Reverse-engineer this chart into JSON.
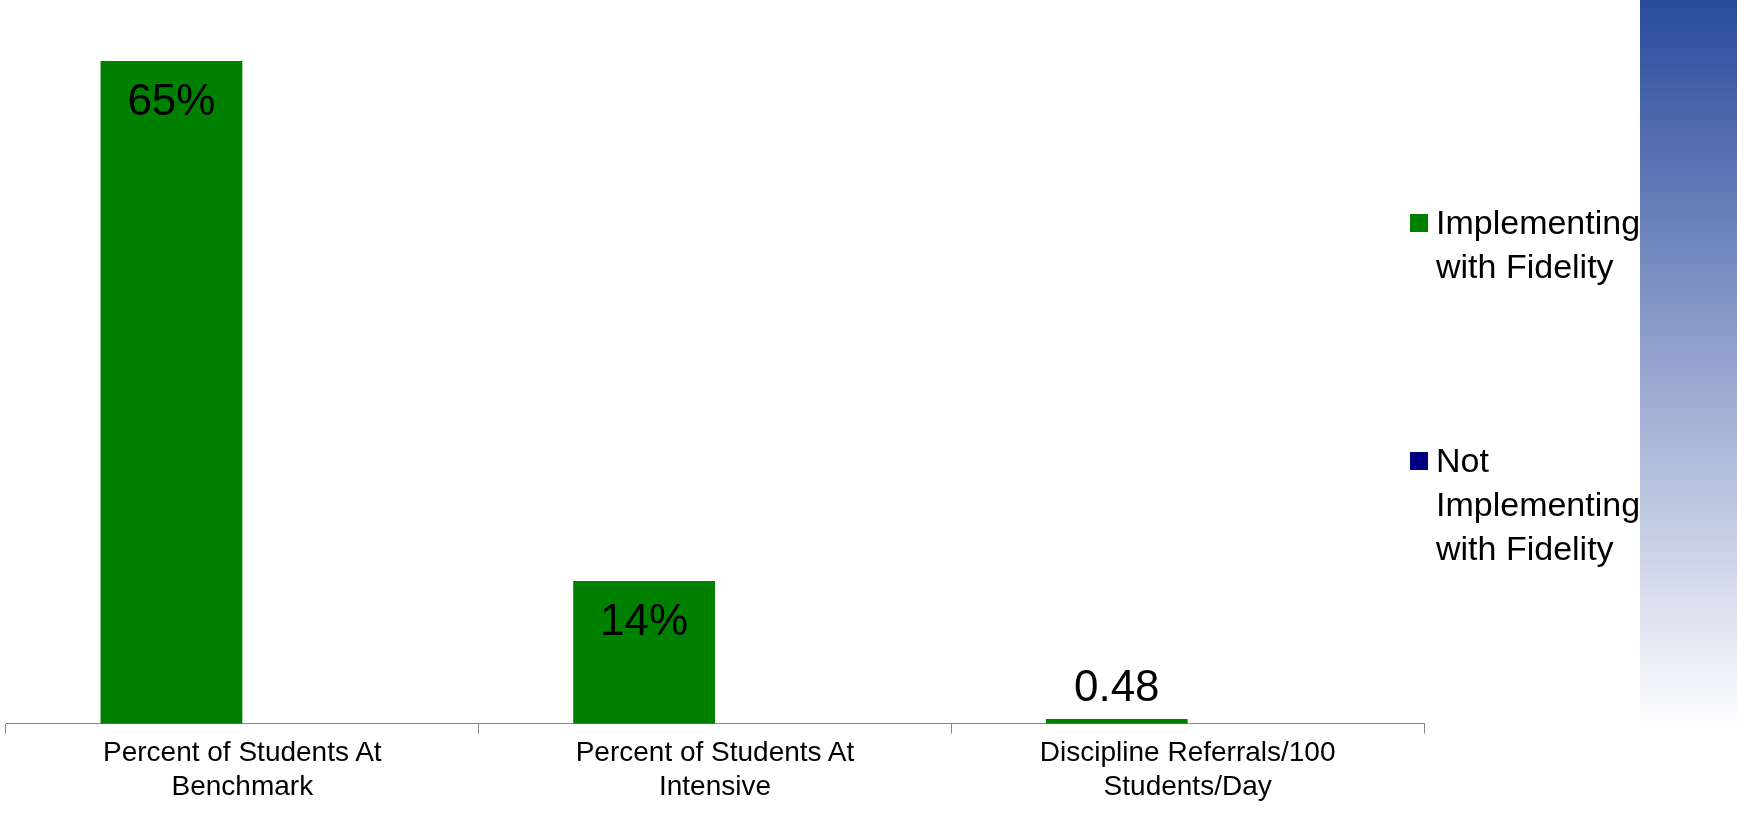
{
  "chart_data": {
    "type": "bar",
    "categories": [
      "Percent of Students At Benchmark",
      "Percent of Students At Intensive",
      "Discipline Referrals/100 Students/Day"
    ],
    "series": [
      {
        "name": "Implementing with Fidelity",
        "color": "#008000",
        "values": [
          65,
          14,
          0.48
        ],
        "value_labels": [
          "65%",
          "14%",
          "0.48"
        ]
      },
      {
        "name": "Not Implementing with Fidelity",
        "color": "#000080",
        "values": [
          null,
          null,
          null
        ]
      }
    ],
    "tick_labels": "x",
    "legend": "right"
  }
}
